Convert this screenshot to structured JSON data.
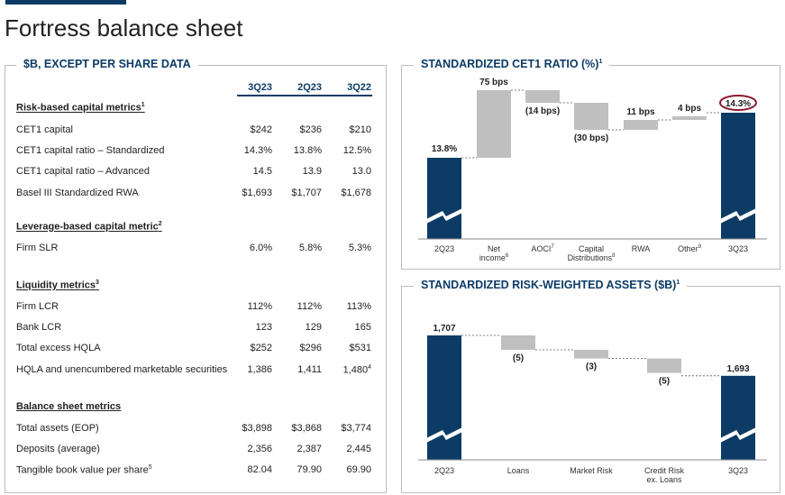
{
  "page_title": "Fortress balance sheet",
  "left_panel": {
    "title": "$B, EXCEPT PER SHARE DATA",
    "columns": [
      "3Q23",
      "2Q23",
      "3Q22"
    ],
    "sections": [
      {
        "heading": "Risk-based capital metrics",
        "note": "1",
        "rows": [
          {
            "label": "CET1 capital",
            "values": [
              "$242",
              "$236",
              "$210"
            ]
          },
          {
            "label": "CET1 capital ratio – Standardized",
            "values": [
              "14.3%",
              "13.8%",
              "12.5%"
            ]
          },
          {
            "label": "CET1 capital ratio – Advanced",
            "values": [
              "14.5",
              "13.9",
              "13.0"
            ]
          },
          {
            "label": "Basel III Standardized RWA",
            "values": [
              "$1,693",
              "$1,707",
              "$1,678"
            ]
          }
        ]
      },
      {
        "heading": "Leverage-based capital metric",
        "note": "2",
        "rows": [
          {
            "label": "Firm SLR",
            "values": [
              "6.0%",
              "5.8%",
              "5.3%"
            ]
          }
        ]
      },
      {
        "heading": "Liquidity metrics",
        "note": "3",
        "rows": [
          {
            "label": "Firm LCR",
            "values": [
              "112%",
              "112%",
              "113%"
            ]
          },
          {
            "label": "Bank LCR",
            "values": [
              "123",
              "129",
              "165"
            ]
          },
          {
            "label": "Total excess HQLA",
            "values": [
              "$252",
              "$296",
              "$531"
            ]
          },
          {
            "label": "HQLA and unencumbered marketable securities",
            "values": [
              "1,386",
              "1,411",
              "1,480"
            ],
            "note": "4"
          }
        ]
      },
      {
        "heading": "Balance sheet metrics",
        "note": "",
        "rows": [
          {
            "label": "Total assets (EOP)",
            "values": [
              "$3,898",
              "$3,868",
              "$3,774"
            ]
          },
          {
            "label": "Deposits (average)",
            "values": [
              "2,356",
              "2,387",
              "2,445"
            ]
          },
          {
            "label": "Tangible book value per share",
            "note": "5",
            "values": [
              "82.04",
              "79.90",
              "69.90"
            ]
          }
        ]
      }
    ]
  },
  "chart_data": [
    {
      "type": "bar",
      "title": "STANDARDIZED CET1 RATIO (%)",
      "title_note": "1",
      "categories": [
        "2Q23",
        "Net income",
        "AOCI",
        "Capital Distributions",
        "RWA",
        "Other",
        "3Q23"
      ],
      "category_notes": [
        "",
        "6",
        "7",
        "8",
        "",
        "9",
        ""
      ],
      "values": [
        13.8,
        0.75,
        -0.14,
        -0.3,
        0.11,
        0.04,
        14.3
      ],
      "data_labels": [
        "13.8%",
        "75 bps",
        "(14 bps)",
        "(30 bps)",
        "11 bps",
        "4 bps",
        "14.3%"
      ],
      "highlight": "14.3%",
      "colors": {
        "total": "#0c3b66",
        "change": "#bfbfbf",
        "highlight_ring": "#8b1a2e"
      }
    },
    {
      "type": "bar",
      "title": "STANDARDIZED RISK-WEIGHTED ASSETS ($B)",
      "title_note": "1",
      "categories": [
        "2Q23",
        "Loans",
        "Market Risk",
        "Credit Risk ex. Loans",
        "3Q23"
      ],
      "values": [
        1707,
        -5,
        -3,
        -5,
        1693
      ],
      "data_labels": [
        "1,707",
        "(5)",
        "(3)",
        "(5)",
        "1,693"
      ],
      "colors": {
        "total": "#0c3b66",
        "change": "#bfbfbf"
      }
    }
  ]
}
